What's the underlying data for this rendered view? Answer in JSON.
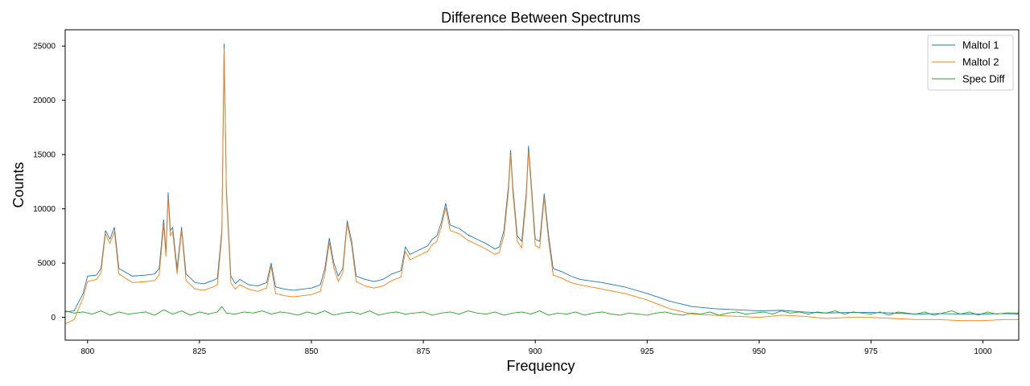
{
  "chart_data": {
    "type": "line",
    "title": "Difference Between Spectrums",
    "xlabel": "Frequency",
    "ylabel": "Counts",
    "xlim": [
      795,
      1008
    ],
    "ylim": [
      -2100,
      26500
    ],
    "xticks": [
      800,
      825,
      850,
      875,
      900,
      925,
      950,
      975,
      1000
    ],
    "yticks": [
      0,
      5000,
      10000,
      15000,
      20000,
      25000
    ],
    "grid": false,
    "legend_position": "top-right",
    "series": [
      {
        "name": "Maltol 1",
        "color": "#1f77b4",
        "x": [
          795,
          797,
          799,
          800,
          802,
          803,
          804,
          805,
          806,
          807,
          810,
          813,
          815,
          816,
          817,
          817.5,
          818,
          818.5,
          819,
          820,
          821,
          822,
          824,
          826,
          828,
          829,
          830,
          830.5,
          831,
          832,
          833,
          834,
          836,
          838,
          840,
          841,
          842,
          844,
          846,
          848,
          850,
          852,
          853,
          854,
          855,
          856,
          857,
          858,
          859,
          860,
          862,
          864,
          866,
          868,
          870,
          871,
          872,
          874,
          876,
          877,
          878,
          879,
          880,
          881,
          883,
          885,
          887,
          889,
          891,
          892,
          893,
          894,
          894.5,
          895,
          896,
          897,
          898,
          898.5,
          899,
          900,
          901,
          902,
          903,
          904,
          906,
          908,
          910,
          915,
          920,
          925,
          930,
          935,
          940,
          945,
          950,
          955,
          960,
          965,
          970,
          975,
          980,
          985,
          990,
          995,
          1000,
          1005,
          1008
        ],
        "values": [
          500,
          600,
          2200,
          3800,
          3900,
          4500,
          8000,
          7200,
          8300,
          4500,
          3800,
          3900,
          4000,
          4500,
          9000,
          6000,
          11500,
          8000,
          8300,
          4500,
          8300,
          4000,
          3200,
          3100,
          3400,
          3600,
          8000,
          25200,
          12000,
          3800,
          3100,
          3500,
          3000,
          2900,
          3200,
          5000,
          2800,
          2600,
          2500,
          2600,
          2700,
          3000,
          4500,
          7300,
          5000,
          3800,
          4500,
          8900,
          7000,
          3800,
          3500,
          3300,
          3500,
          4000,
          4300,
          6500,
          5800,
          6200,
          6600,
          7200,
          7500,
          8700,
          10500,
          8500,
          8200,
          7600,
          7200,
          6800,
          6300,
          6500,
          8000,
          12000,
          15400,
          12000,
          7500,
          7000,
          11500,
          15800,
          13000,
          7200,
          7000,
          11400,
          7500,
          4500,
          4200,
          3800,
          3500,
          3200,
          2800,
          2200,
          1500,
          1000,
          800,
          700,
          600,
          650,
          500,
          400,
          450,
          450,
          400,
          300,
          350,
          300,
          300,
          350,
          300
        ]
      },
      {
        "name": "Maltol 2",
        "color": "#ff7f0e",
        "x": [
          795,
          797,
          799,
          800,
          802,
          803,
          804,
          805,
          806,
          807,
          810,
          813,
          815,
          816,
          817,
          817.5,
          818,
          818.5,
          819,
          820,
          821,
          822,
          824,
          826,
          828,
          829,
          830,
          830.5,
          831,
          832,
          833,
          834,
          836,
          838,
          840,
          841,
          842,
          844,
          846,
          848,
          850,
          852,
          853,
          854,
          855,
          856,
          857,
          858,
          859,
          860,
          862,
          864,
          866,
          868,
          870,
          871,
          872,
          874,
          876,
          877,
          878,
          879,
          880,
          881,
          883,
          885,
          887,
          889,
          891,
          892,
          893,
          894,
          894.5,
          895,
          896,
          897,
          898,
          898.5,
          899,
          900,
          901,
          902,
          903,
          904,
          906,
          908,
          910,
          915,
          920,
          925,
          930,
          935,
          940,
          945,
          950,
          955,
          960,
          965,
          970,
          975,
          980,
          985,
          990,
          995,
          1000,
          1005,
          1008
        ],
        "values": [
          -600,
          -200,
          1800,
          3300,
          3500,
          4100,
          7700,
          6800,
          7900,
          4000,
          3200,
          3300,
          3400,
          3900,
          8500,
          5600,
          11000,
          7500,
          7900,
          4000,
          8000,
          3400,
          2600,
          2500,
          2800,
          3000,
          7600,
          24700,
          11500,
          3200,
          2600,
          3000,
          2600,
          2400,
          2700,
          4700,
          2200,
          2000,
          1900,
          2000,
          2100,
          2400,
          4000,
          6900,
          4600,
          3300,
          4100,
          8600,
          6600,
          3300,
          2900,
          2700,
          2900,
          3400,
          3700,
          6100,
          5300,
          5700,
          6100,
          6700,
          7000,
          8300,
          10100,
          8000,
          7700,
          7100,
          6700,
          6300,
          5800,
          6000,
          7500,
          11500,
          15000,
          11500,
          7000,
          6400,
          11000,
          15300,
          12500,
          6600,
          6400,
          11000,
          7000,
          3900,
          3600,
          3200,
          3000,
          2600,
          2200,
          1600,
          800,
          300,
          200,
          100,
          0,
          200,
          100,
          -100,
          0,
          0,
          -100,
          -200,
          -200,
          -300,
          -300,
          -200,
          -200
        ]
      },
      {
        "name": "Spec Diff",
        "color": "#2ca02c",
        "x": [
          795,
          797,
          799,
          801,
          803,
          805,
          807,
          809,
          811,
          813,
          815,
          817,
          819,
          821,
          823,
          825,
          827,
          829,
          830,
          831,
          833,
          835,
          837,
          839,
          841,
          843,
          845,
          847,
          849,
          851,
          853,
          855,
          857,
          859,
          861,
          863,
          865,
          867,
          869,
          871,
          873,
          875,
          877,
          879,
          881,
          883,
          885,
          887,
          889,
          891,
          893,
          895,
          897,
          899,
          901,
          903,
          905,
          907,
          909,
          911,
          913,
          915,
          917,
          919,
          921,
          923,
          925,
          927,
          929,
          931,
          933,
          935,
          937,
          939,
          941,
          943,
          945,
          947,
          949,
          951,
          953,
          955,
          957,
          959,
          961,
          963,
          965,
          967,
          969,
          971,
          973,
          975,
          977,
          979,
          981,
          983,
          985,
          987,
          989,
          991,
          993,
          995,
          997,
          999,
          1001,
          1003,
          1005,
          1008
        ],
        "values": [
          600,
          400,
          500,
          300,
          600,
          200,
          500,
          300,
          400,
          500,
          200,
          700,
          300,
          600,
          200,
          500,
          300,
          500,
          1000,
          400,
          300,
          500,
          400,
          600,
          300,
          500,
          400,
          200,
          500,
          300,
          600,
          200,
          400,
          500,
          300,
          600,
          200,
          400,
          500,
          300,
          400,
          500,
          200,
          400,
          500,
          300,
          600,
          400,
          300,
          500,
          200,
          400,
          500,
          300,
          600,
          200,
          400,
          300,
          500,
          200,
          400,
          500,
          300,
          200,
          400,
          300,
          200,
          400,
          500,
          300,
          200,
          400,
          300,
          500,
          200,
          400,
          500,
          300,
          400,
          500,
          300,
          600,
          400,
          500,
          300,
          500,
          400,
          600,
          300,
          500,
          400,
          300,
          500,
          200,
          500,
          400,
          300,
          500,
          200,
          400,
          600,
          300,
          500,
          200,
          500,
          300,
          400,
          400
        ]
      }
    ]
  }
}
